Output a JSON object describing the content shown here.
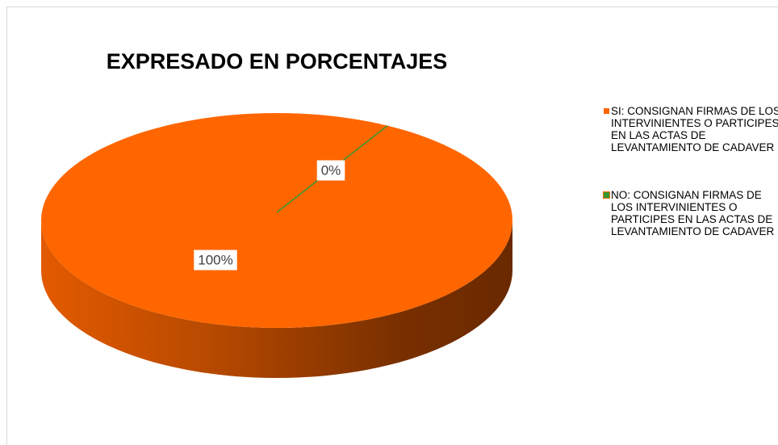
{
  "chart_data": {
    "type": "pie",
    "title": "EXPRESADO EN PORCENTAJES",
    "categories": [
      "SI: CONSIGNAN FIRMAS DE LOS INTERVINIENTES O PARTICIPES EN LAS ACTAS DE LEVANTAMIENTO DE CADAVER",
      "NO: CONSIGNAN FIRMAS DE LOS INTERVINIENTES O PARTICIPES EN LAS ACTAS DE LEVANTAMIENTO DE CADAVER"
    ],
    "values": [
      100,
      0
    ],
    "value_labels": [
      "100%",
      "0%"
    ],
    "colors": [
      "#ff6600",
      "#339933"
    ],
    "legend": "right"
  }
}
